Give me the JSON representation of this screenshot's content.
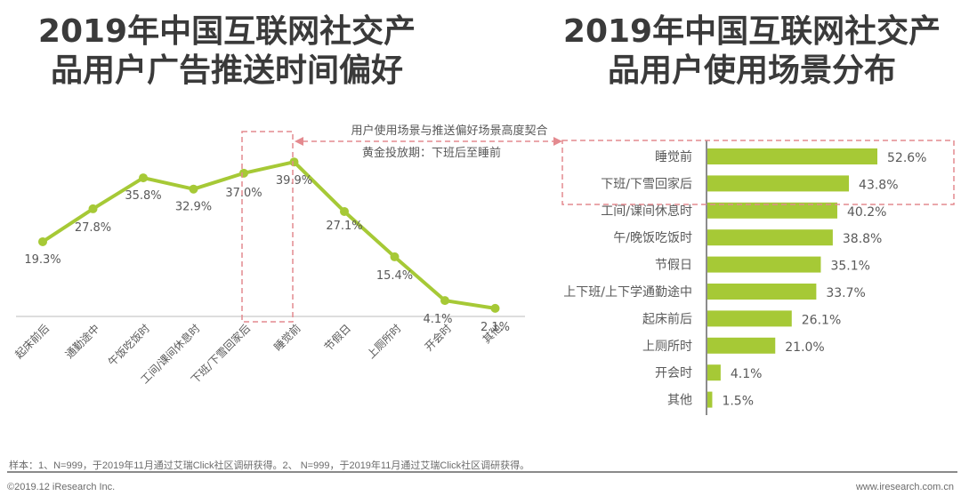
{
  "titles": {
    "left": [
      "2019年中国互联网社交产",
      "品用户广告推送时间偏好"
    ],
    "right": [
      "2019年中国互联网社交产",
      "品用户使用场景分布"
    ]
  },
  "annotations": {
    "match_text": "用户使用场景与推送偏好场景高度契合",
    "golden_period": "黄金投放期：下班后至睡前"
  },
  "colors": {
    "series": "#a6c936",
    "highlight_box": "#e48a8f",
    "axis": "#999999",
    "text": "#595959"
  },
  "chart_data": [
    {
      "type": "line",
      "title": "2019年中国互联网社交产品用户广告推送时间偏好",
      "xlabel": "",
      "ylabel": "",
      "categories": [
        "起床前后",
        "通勤途中",
        "午饭吃饭时",
        "工间/课间休息时",
        "下班/下雪回家后",
        "睡觉前",
        "节假日",
        "上厕所时",
        "开会时",
        "其他"
      ],
      "values": [
        19.3,
        27.8,
        35.8,
        32.9,
        37.0,
        39.9,
        27.1,
        15.4,
        4.1,
        2.1
      ],
      "labels": [
        "19.3%",
        "27.8%",
        "35.8%",
        "32.9%",
        "37.0%",
        "39.9%",
        "27.1%",
        "15.4%",
        "4.1%",
        "2.1%"
      ],
      "ylim": [
        0,
        45
      ],
      "grid": false,
      "highlight_category": "睡觉前"
    },
    {
      "type": "bar",
      "orientation": "horizontal",
      "title": "2019年中国互联网社交产品用户使用场景分布",
      "categories": [
        "睡觉前",
        "下班/下雪回家后",
        "工间/课间休息时",
        "午/晚饭吃饭时",
        "节假日",
        "上下班/上下学通勤途中",
        "起床前后",
        "上厕所时",
        "开会时",
        "其他"
      ],
      "values": [
        52.6,
        43.8,
        40.2,
        38.8,
        35.1,
        33.7,
        26.1,
        21.0,
        4.1,
        1.5
      ],
      "labels": [
        "52.6%",
        "43.8%",
        "40.2%",
        "38.8%",
        "35.1%",
        "33.7%",
        "26.1%",
        "21.0%",
        "4.1%",
        "1.5%"
      ],
      "xlim": [
        0,
        60
      ],
      "grid": false,
      "highlight_categories": [
        "睡觉前",
        "下班/下雪回家后"
      ]
    }
  ],
  "footer": {
    "note": "样本：1、N=999，于2019年11月通过艾瑞Click社区调研获得。2、 N=999，于2019年11月通过艾瑞Click社区调研获得。",
    "copyright": "©2019.12 iResearch Inc.",
    "site": "www.iresearch.com.cn"
  }
}
